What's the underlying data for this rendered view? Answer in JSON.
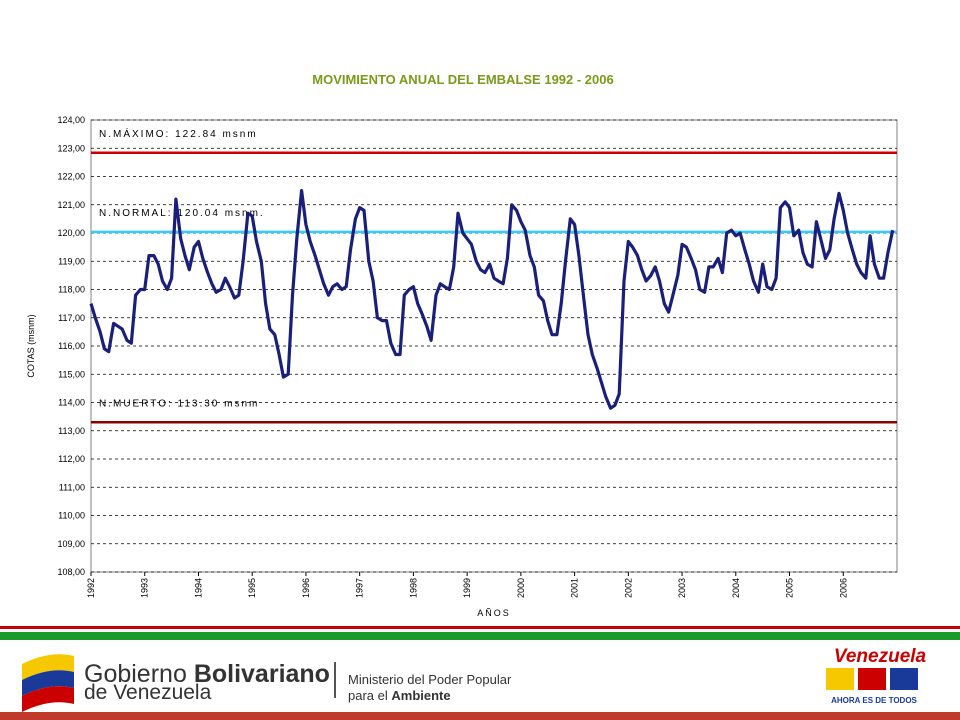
{
  "chart_data": {
    "type": "line",
    "title": "MOVIMIENTO ANUAL DEL EMBALSE 1992 - 2006",
    "y_label": "COTAS (msnm)",
    "x_label": "AÑOS",
    "xlim": [
      1992,
      2007
    ],
    "xticks": [
      1992,
      1993,
      1994,
      1995,
      1996,
      1997,
      1998,
      1999,
      2000,
      2001,
      2002,
      2003,
      2004,
      2005,
      2006
    ],
    "ylim": [
      108,
      124
    ],
    "yticks": [
      {
        "value": 108,
        "label": "108,00"
      },
      {
        "value": 109,
        "label": "109,00"
      },
      {
        "value": 110,
        "label": "110,00"
      },
      {
        "value": 111,
        "label": "111,00"
      },
      {
        "value": 112,
        "label": "112,00"
      },
      {
        "value": 113,
        "label": "113,00"
      },
      {
        "value": 114,
        "label": "114,00"
      },
      {
        "value": 115,
        "label": "115,00"
      },
      {
        "value": 116,
        "label": "116,00"
      },
      {
        "value": 117,
        "label": "117,00"
      },
      {
        "value": 118,
        "label": "118,00"
      },
      {
        "value": 119,
        "label": "119,00"
      },
      {
        "value": 120,
        "label": "120,00"
      },
      {
        "value": 121,
        "label": "121,00"
      },
      {
        "value": 122,
        "label": "122,00"
      },
      {
        "value": 123,
        "label": "123,00"
      },
      {
        "value": 124,
        "label": "124,00"
      }
    ],
    "grid": true,
    "color": "#1a1f7a",
    "x": [
      1992,
      1992.08,
      1992.17,
      1992.25,
      1992.33,
      1992.42,
      1992.5,
      1992.58,
      1992.67,
      1992.75,
      1992.83,
      1992.92,
      1993,
      1993.08,
      1993.17,
      1993.25,
      1993.33,
      1993.42,
      1993.5,
      1993.58,
      1993.67,
      1993.75,
      1993.83,
      1993.92,
      1994,
      1994.08,
      1994.17,
      1994.25,
      1994.33,
      1994.42,
      1994.5,
      1994.58,
      1994.67,
      1994.75,
      1994.83,
      1994.92,
      1995,
      1995.08,
      1995.17,
      1995.25,
      1995.33,
      1995.42,
      1995.5,
      1995.58,
      1995.67,
      1995.75,
      1995.83,
      1995.92,
      1996,
      1996.08,
      1996.17,
      1996.25,
      1996.33,
      1996.42,
      1996.5,
      1996.58,
      1996.67,
      1996.75,
      1996.83,
      1996.92,
      1997,
      1997.08,
      1997.17,
      1997.25,
      1997.33,
      1997.42,
      1997.5,
      1997.58,
      1997.67,
      1997.75,
      1997.83,
      1997.92,
      1998,
      1998.08,
      1998.17,
      1998.25,
      1998.33,
      1998.42,
      1998.5,
      1998.58,
      1998.67,
      1998.75,
      1998.83,
      1998.92,
      1999,
      1999.08,
      1999.17,
      1999.25,
      1999.33,
      1999.42,
      1999.5,
      1999.58,
      1999.67,
      1999.75,
      1999.83,
      1999.92,
      2000,
      2000.08,
      2000.17,
      2000.25,
      2000.33,
      2000.42,
      2000.5,
      2000.58,
      2000.67,
      2000.75,
      2000.83,
      2000.92,
      2001,
      2001.08,
      2001.17,
      2001.25,
      2001.33,
      2001.42,
      2001.5,
      2001.58,
      2001.67,
      2001.75,
      2001.83,
      2001.92,
      2002,
      2002.08,
      2002.17,
      2002.25,
      2002.33,
      2002.42,
      2002.5,
      2002.58,
      2002.67,
      2002.75,
      2002.83,
      2002.92,
      2003,
      2003.08,
      2003.17,
      2003.25,
      2003.33,
      2003.42,
      2003.5,
      2003.58,
      2003.67,
      2003.75,
      2003.83,
      2003.92,
      2004,
      2004.08,
      2004.17,
      2004.25,
      2004.33,
      2004.42,
      2004.5,
      2004.58,
      2004.67,
      2004.75,
      2004.83,
      2004.92,
      2005,
      2005.08,
      2005.17,
      2005.25,
      2005.33,
      2005.42,
      2005.5,
      2005.58,
      2005.67,
      2005.75,
      2005.83,
      2005.92,
      2006,
      2006.08,
      2006.17,
      2006.25,
      2006.33,
      2006.42,
      2006.5,
      2006.58,
      2006.67,
      2006.75,
      2006.83,
      2006.92
    ],
    "values": [
      117.5,
      117.0,
      116.5,
      115.9,
      115.8,
      116.8,
      116.7,
      116.6,
      116.2,
      116.1,
      117.8,
      118.0,
      118.0,
      119.2,
      119.2,
      118.9,
      118.3,
      118.0,
      118.4,
      121.2,
      119.8,
      119.2,
      118.7,
      119.5,
      119.7,
      119.1,
      118.6,
      118.2,
      117.9,
      118.0,
      118.4,
      118.1,
      117.7,
      117.8,
      119.0,
      120.7,
      120.6,
      119.7,
      119.0,
      117.5,
      116.6,
      116.4,
      115.7,
      114.9,
      115.0,
      117.8,
      119.8,
      121.5,
      120.3,
      119.7,
      119.2,
      118.7,
      118.2,
      117.8,
      118.1,
      118.2,
      118.0,
      118.1,
      119.4,
      120.5,
      120.9,
      120.8,
      119.0,
      118.3,
      117.0,
      116.9,
      116.9,
      116.1,
      115.7,
      115.7,
      117.8,
      118.0,
      118.1,
      117.5,
      117.1,
      116.7,
      116.2,
      117.8,
      118.2,
      118.1,
      118.0,
      118.8,
      120.7,
      120.0,
      119.8,
      119.6,
      119.0,
      118.7,
      118.6,
      118.9,
      118.4,
      118.3,
      118.2,
      119.1,
      121.0,
      120.8,
      120.4,
      120.1,
      119.2,
      118.8,
      117.8,
      117.6,
      116.9,
      116.4,
      116.4,
      117.5,
      119.0,
      120.5,
      120.3,
      119.2,
      117.7,
      116.4,
      115.7,
      115.2,
      114.7,
      114.2,
      113.8,
      113.9,
      114.3,
      118.3,
      119.7,
      119.5,
      119.2,
      118.7,
      118.3,
      118.5,
      118.8,
      118.3,
      117.5,
      117.2,
      117.8,
      118.5,
      119.6,
      119.5,
      119.1,
      118.7,
      118.0,
      117.9,
      118.8,
      118.8,
      119.1,
      118.6,
      120.0,
      120.1,
      119.9,
      120.0,
      119.4,
      118.9,
      118.3,
      117.9,
      118.9,
      118.1,
      118.0,
      118.4,
      120.9,
      121.1,
      120.9,
      119.9,
      120.1,
      119.3,
      118.9,
      118.8,
      120.4,
      119.8,
      119.1,
      119.4,
      120.5,
      121.4,
      120.8,
      120.0,
      119.4,
      118.9,
      118.6,
      118.4,
      119.9,
      118.9,
      118.4,
      118.4,
      119.3,
      120.1
    ],
    "reference_lines": [
      {
        "label": "N.MÁXIMO: 122.84 msnm",
        "value": 122.84,
        "color": "#cc0000"
      },
      {
        "label": "N.NORMAL: 120.04 msnm.",
        "value": 120.04,
        "color": "#33ccff"
      },
      {
        "label": "N.MUERTO: 113.30 msnm",
        "value": 113.3,
        "color": "#8b0000"
      }
    ]
  },
  "footer": {
    "gov_line1a": "Gobierno",
    "gov_line1b": "Bolivariano",
    "gov_line2": "de Venezuela",
    "ministry_line1": "Ministerio del Poder Popular",
    "ministry_line2a": "para el",
    "ministry_line2b": "Ambiente",
    "brand": "Venezuela",
    "slogan": "AHORA ES DE TODOS"
  }
}
